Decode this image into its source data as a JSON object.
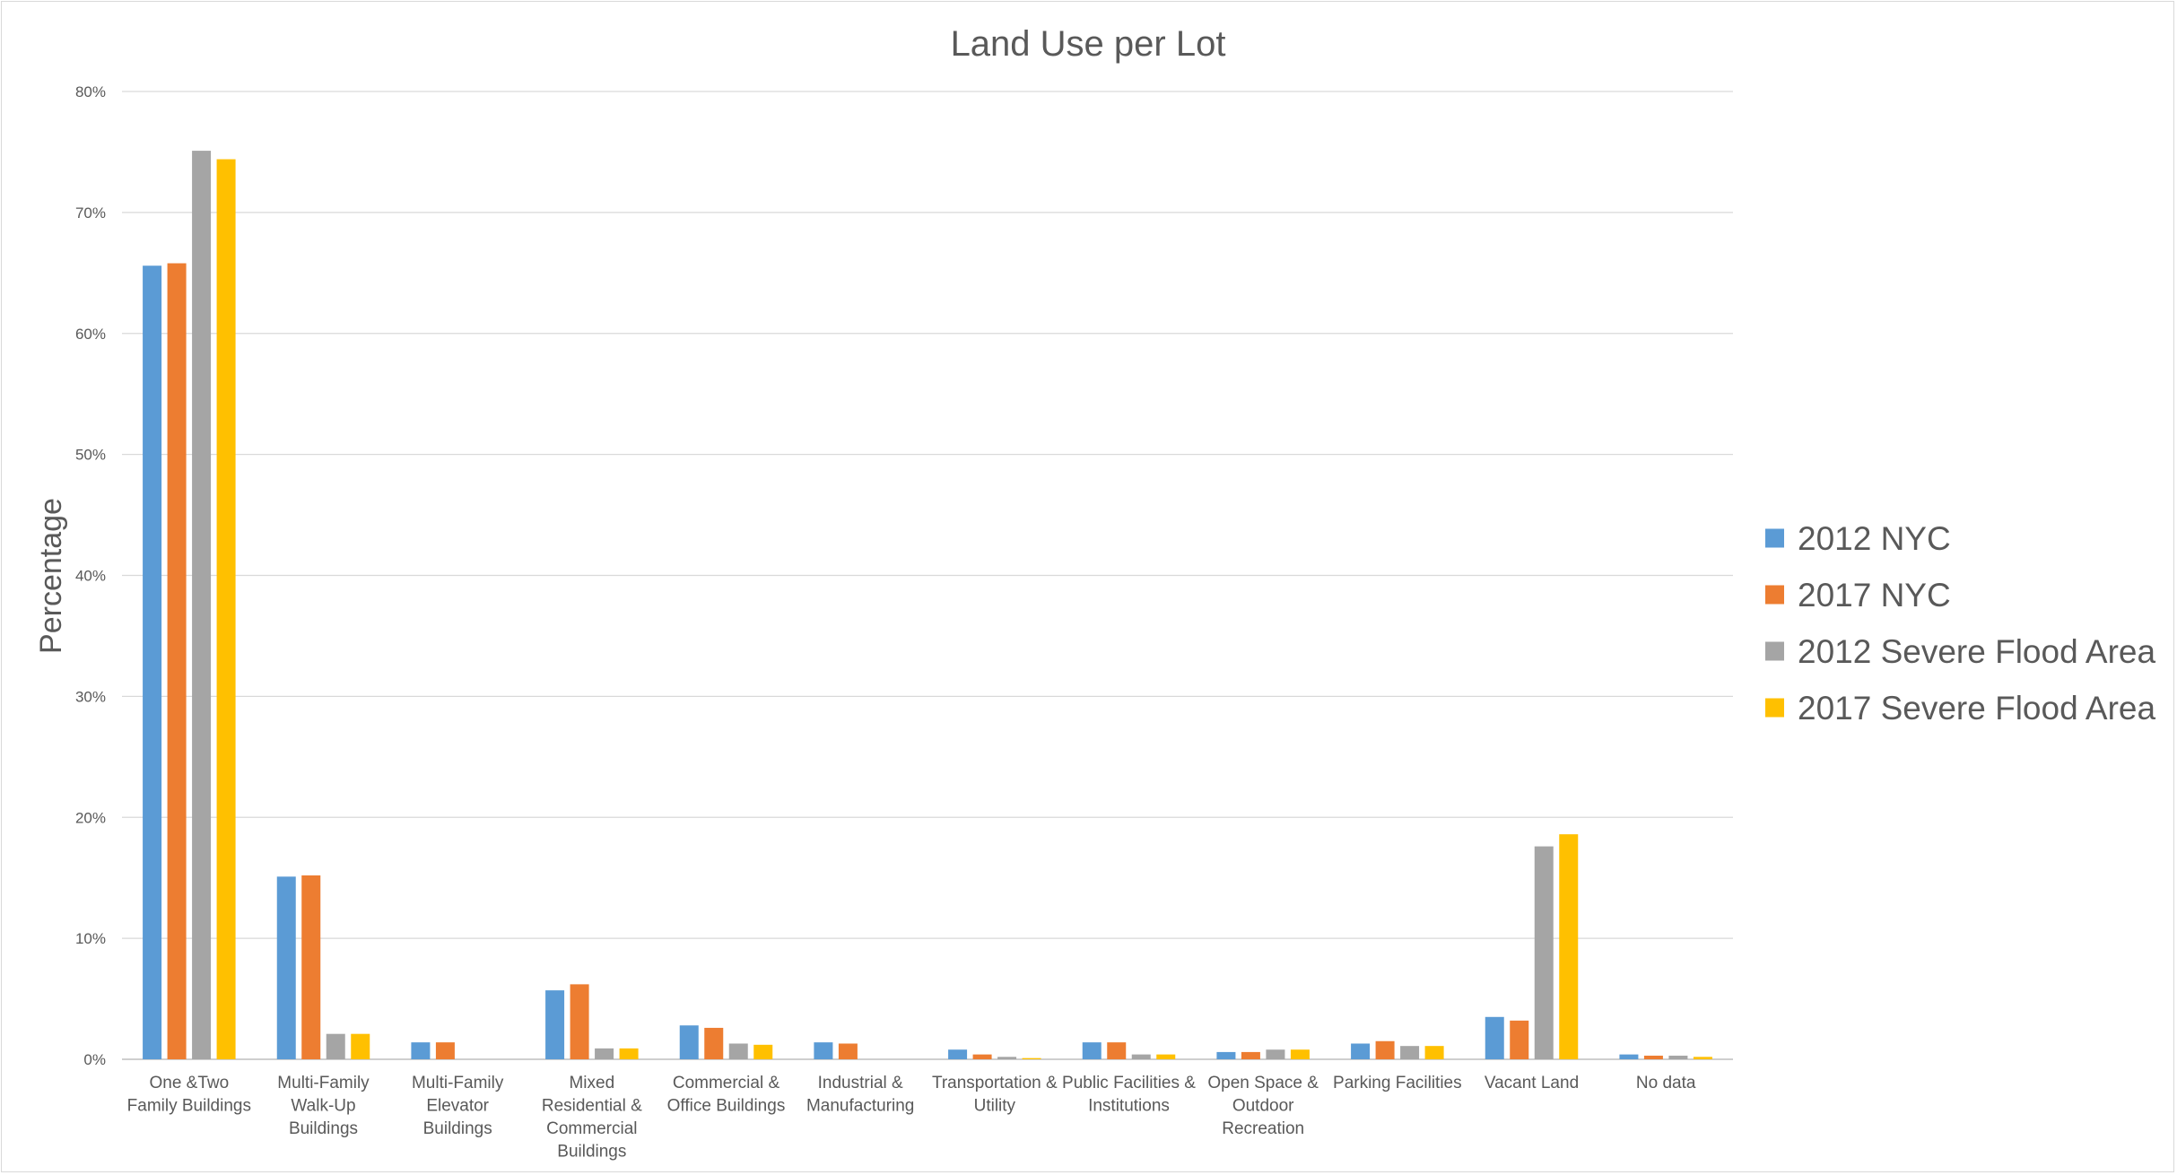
{
  "chart_data": {
    "type": "bar",
    "title": "Land Use per Lot",
    "xlabel": "",
    "ylabel": "Percentage",
    "ylim": [
      0,
      0.8
    ],
    "yticks": [
      "0%",
      "10%",
      "20%",
      "30%",
      "40%",
      "50%",
      "60%",
      "70%",
      "80%"
    ],
    "grid": true,
    "legend_position": "right",
    "categories": [
      [
        "One &Two",
        "Family Buildings"
      ],
      [
        "Multi-Family",
        "Walk-Up",
        "Buildings"
      ],
      [
        "Multi-Family",
        "Elevator",
        "Buildings"
      ],
      [
        "Mixed",
        "Residential &",
        "Commercial",
        "Buildings"
      ],
      [
        "Commercial &",
        "Office Buildings"
      ],
      [
        "Industrial &",
        "Manufacturing"
      ],
      [
        "Transportation &",
        "Utility"
      ],
      [
        "Public Facilities &",
        "Institutions"
      ],
      [
        "Open Space &",
        "Outdoor",
        "Recreation"
      ],
      [
        "Parking Facilities"
      ],
      [
        "Vacant Land"
      ],
      [
        "No data"
      ]
    ],
    "series": [
      {
        "name": "2012 NYC",
        "color": "#5b9bd5",
        "values": [
          0.656,
          0.151,
          0.014,
          0.057,
          0.028,
          0.014,
          0.008,
          0.014,
          0.006,
          0.013,
          0.035,
          0.004
        ]
      },
      {
        "name": "2017 NYC",
        "color": "#ed7d31",
        "values": [
          0.658,
          0.152,
          0.014,
          0.062,
          0.026,
          0.013,
          0.004,
          0.014,
          0.006,
          0.015,
          0.032,
          0.003
        ]
      },
      {
        "name": "2012 Severe Flood Area",
        "color": "#a5a5a5",
        "values": [
          0.751,
          0.021,
          0.0,
          0.009,
          0.013,
          0.0,
          0.002,
          0.004,
          0.008,
          0.011,
          0.176,
          0.003
        ]
      },
      {
        "name": "2017 Severe Flood Area",
        "color": "#ffc000",
        "values": [
          0.744,
          0.021,
          0.0,
          0.009,
          0.012,
          0.0,
          0.001,
          0.004,
          0.008,
          0.011,
          0.186,
          0.002
        ]
      }
    ]
  }
}
